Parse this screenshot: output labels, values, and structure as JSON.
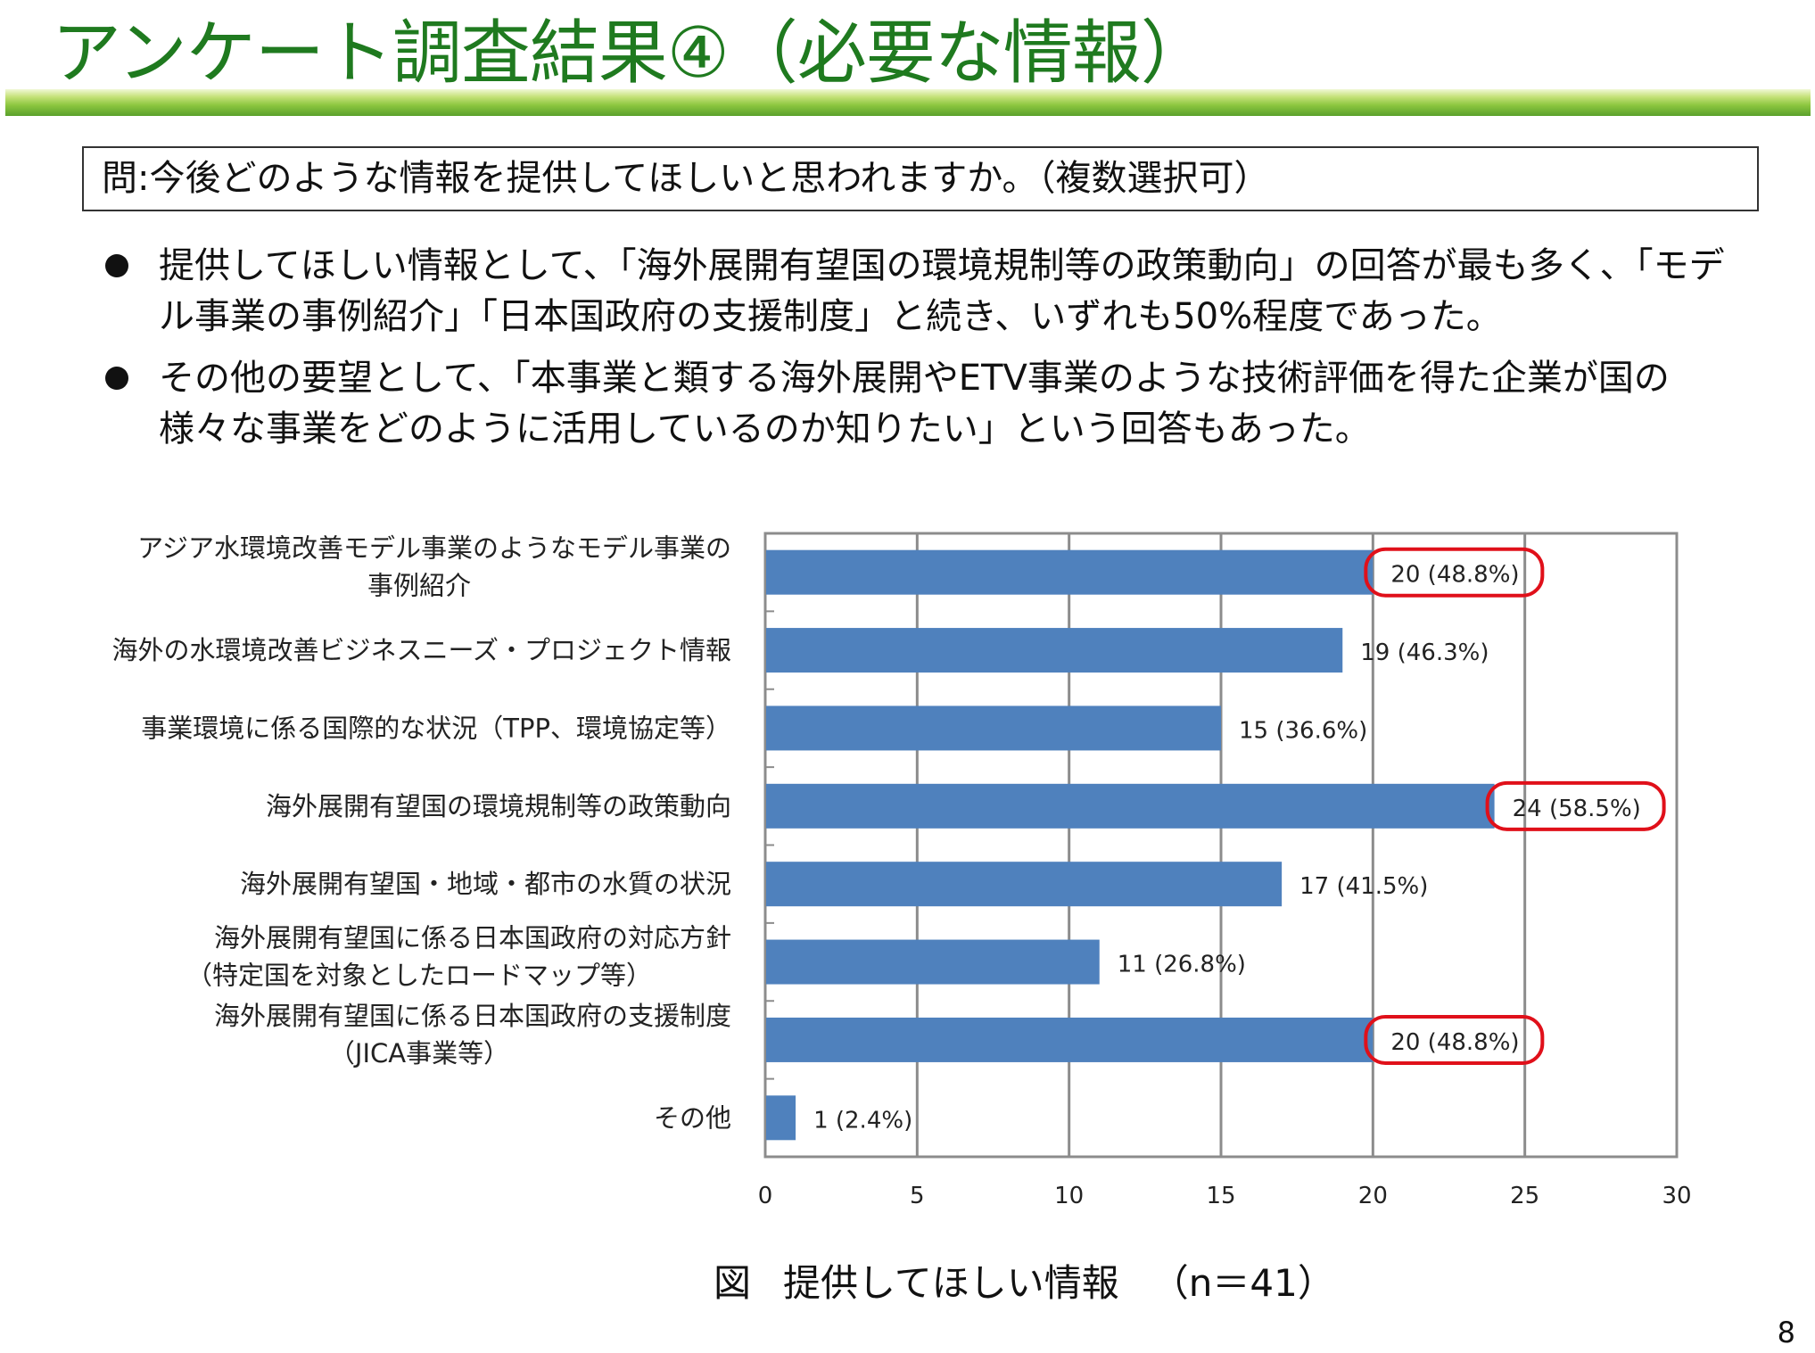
{
  "slide": {
    "title": "アンケート調査結果④（必要な情報）",
    "question": "問:今後どのような情報を提供してほしいと思われますか。（複数選択可）",
    "bullets": [
      {
        "lines": [
          "提供してほしい情報として、「海外展開有望国の環境規制等の政策動向」の回答が最も多く、「モデ",
          "ル事業の事例紹介」「日本国政府の支援制度」と続き、いずれも50%程度であった。"
        ]
      },
      {
        "lines": [
          "その他の要望として、「本事業と類する海外展開やETV事業のような技術評価を得た企業が国の",
          "様々な事業をどのように活用しているのか知りたい」という回答もあった。"
        ]
      }
    ],
    "caption": {
      "fig": "図",
      "text": "提供してほしい情報",
      "n": "（n＝41）"
    },
    "page_number": "8"
  },
  "chart_data": {
    "type": "bar",
    "orientation": "horizontal",
    "categories": [
      [
        "アジア水環境改善モデル事業のようなモデル事業の",
        "事例紹介"
      ],
      [
        "海外の水環境改善ビジネスニーズ・プロジェクト情報"
      ],
      [
        "事業環境に係る国際的な状況（TPP、環境協定等）"
      ],
      [
        "海外展開有望国の環境規制等の政策動向"
      ],
      [
        "海外展開有望国・地域・都市の水質の状況"
      ],
      [
        "海外展開有望国に係る日本国政府の対応方針",
        "（特定国を対象としたロードマップ等）"
      ],
      [
        "海外展開有望国に係る日本国政府の支援制度",
        "（JICA事業等）"
      ],
      [
        "その他"
      ]
    ],
    "values": [
      20,
      19,
      15,
      24,
      17,
      11,
      20,
      1
    ],
    "value_labels": [
      "20 (48.8%)",
      "19 (46.3%)",
      "15 (36.6%)",
      "24 (58.5%)",
      "17 (41.5%)",
      "11 (26.8%)",
      "20 (48.8%)",
      "1 (2.4%)"
    ],
    "highlighted": [
      true,
      false,
      false,
      true,
      false,
      false,
      true,
      false
    ],
    "xlim": [
      0,
      30
    ],
    "xticks": [
      0,
      5,
      10,
      15,
      20,
      25,
      30
    ],
    "grid": "vertical",
    "bar_color": "#4f81bd",
    "highlight_color": "#e0101a"
  }
}
